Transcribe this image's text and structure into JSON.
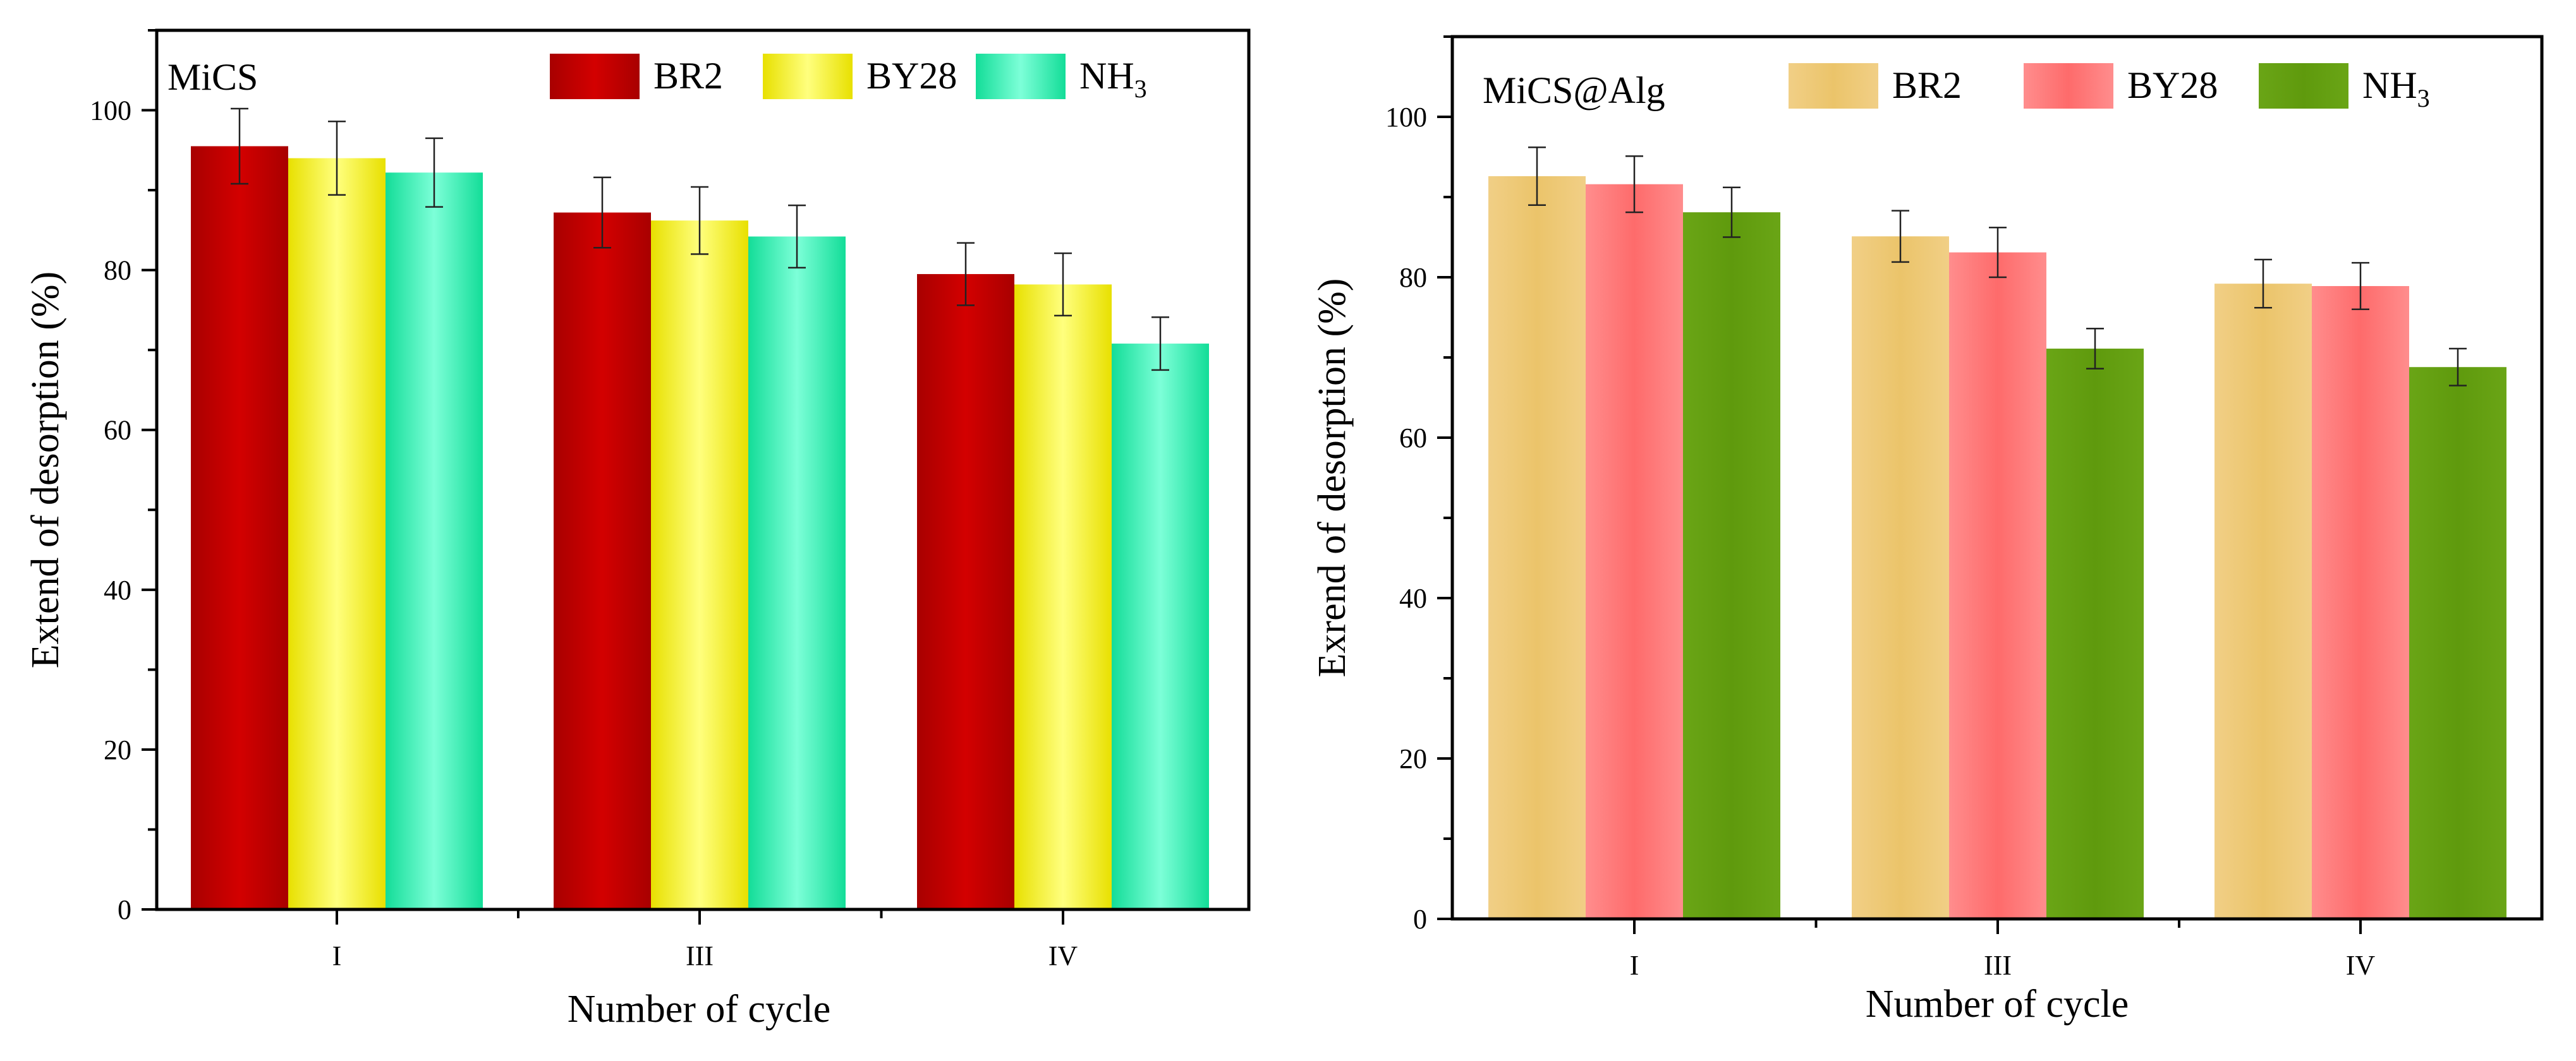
{
  "chart_data": [
    {
      "type": "bar",
      "title": "MiCS",
      "xlabel": "Number of cycle",
      "ylabel": "Extend of desorption (%)",
      "ylim": [
        0,
        110
      ],
      "yticks": [
        0,
        20,
        40,
        60,
        80,
        100
      ],
      "categories": [
        "I",
        "III",
        "IV"
      ],
      "legend_position": "top-right",
      "series": [
        {
          "name": "BR2",
          "sub": "",
          "color_mid": "#d30000",
          "color_edge": "#a80000",
          "values": [
            95.5,
            87.2,
            79.5
          ],
          "errors": [
            4.7,
            4.4,
            3.9
          ]
        },
        {
          "name": "BY28",
          "sub": "",
          "color_mid": "#ffff7e",
          "color_edge": "#e8e000",
          "values": [
            94.0,
            86.2,
            78.2
          ],
          "errors": [
            4.6,
            4.2,
            3.9
          ]
        },
        {
          "name": "NH",
          "sub": "3",
          "color_mid": "#7dffd8",
          "color_edge": "#13dd98",
          "values": [
            92.2,
            84.2,
            70.8
          ],
          "errors": [
            4.3,
            3.9,
            3.3
          ]
        }
      ]
    },
    {
      "type": "bar",
      "title": "MiCS@Alg",
      "xlabel": "Number of cycle",
      "ylabel": "Exrend of desorption (%)",
      "ylim": [
        0,
        110
      ],
      "yticks": [
        0,
        20,
        40,
        60,
        80,
        100
      ],
      "categories": [
        "I",
        "III",
        "IV"
      ],
      "legend_position": "top-right",
      "series": [
        {
          "name": "BR2",
          "sub": "",
          "color_mid": "#ebc46a",
          "color_edge": "#f1cf86",
          "values": [
            92.6,
            85.1,
            79.2
          ],
          "errors": [
            3.6,
            3.2,
            3.0
          ]
        },
        {
          "name": "BY28",
          "sub": "",
          "color_mid": "#fe6b6b",
          "color_edge": "#ff8d8d",
          "values": [
            91.6,
            83.1,
            78.9
          ],
          "errors": [
            3.5,
            3.1,
            2.9
          ]
        },
        {
          "name": "NH",
          "sub": "3",
          "color_mid": "#5f9a0d",
          "color_edge": "#6aa516",
          "values": [
            88.1,
            71.1,
            68.8
          ],
          "errors": [
            3.1,
            2.5,
            2.3
          ]
        }
      ]
    }
  ]
}
